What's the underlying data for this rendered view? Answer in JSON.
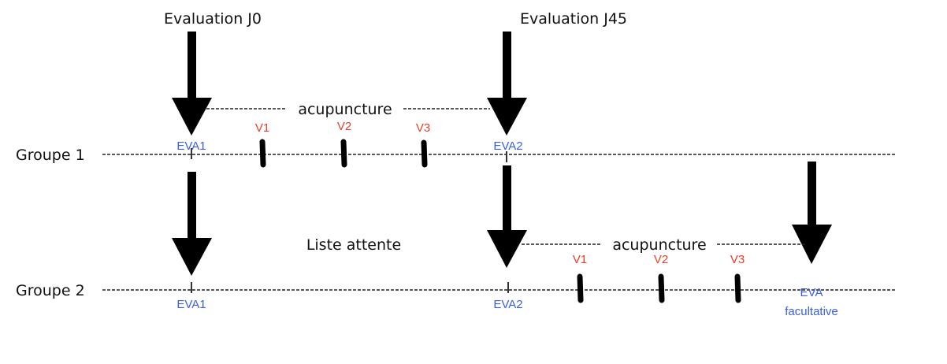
{
  "titles": {
    "eval_j0": "Evaluation J0",
    "eval_j45": "Evaluation J45"
  },
  "groups": {
    "g1": "Groupe 1",
    "g2": "Groupe 2"
  },
  "group1": {
    "phase": "acupuncture",
    "visits": [
      "V1",
      "V2",
      "V3"
    ],
    "eva_start": "EVA1",
    "eva_end": "EVA2"
  },
  "group2": {
    "phase_wait": "Liste attente",
    "phase": "acupuncture",
    "visits": [
      "V1",
      "V2",
      "V3"
    ],
    "eva_start": "EVA1",
    "eva_end": "EVA2",
    "eva_optional": [
      "EVA",
      "facultative"
    ]
  },
  "colors": {
    "visit": "#e8402a",
    "eva": "#3a5ee8",
    "arrow": "#000000"
  }
}
